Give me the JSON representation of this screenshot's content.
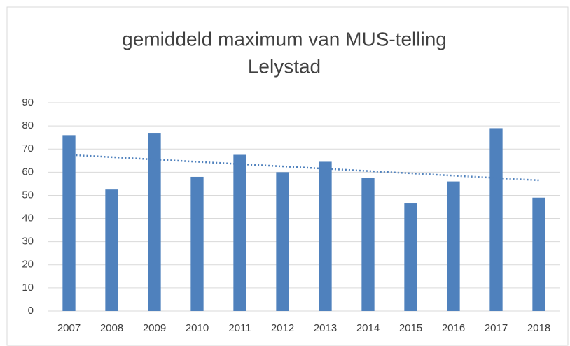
{
  "chart_data": {
    "type": "bar",
    "title": [
      "gemiddeld maximum van MUS-telling",
      "Lelystad"
    ],
    "categories": [
      "2007",
      "2008",
      "2009",
      "2010",
      "2011",
      "2012",
      "2013",
      "2014",
      "2015",
      "2016",
      "2017",
      "2018"
    ],
    "values": [
      76,
      52.5,
      77,
      58,
      67.5,
      60,
      64.5,
      57.5,
      46.5,
      56,
      79,
      49
    ],
    "color": "#4f81bd",
    "trendline": {
      "color": "#4f81bd",
      "values": [
        67.5,
        56.5
      ]
    },
    "ylim": [
      0,
      90
    ],
    "yticks": [
      0,
      10,
      20,
      30,
      40,
      50,
      60,
      70,
      80,
      90
    ],
    "grid": true
  }
}
